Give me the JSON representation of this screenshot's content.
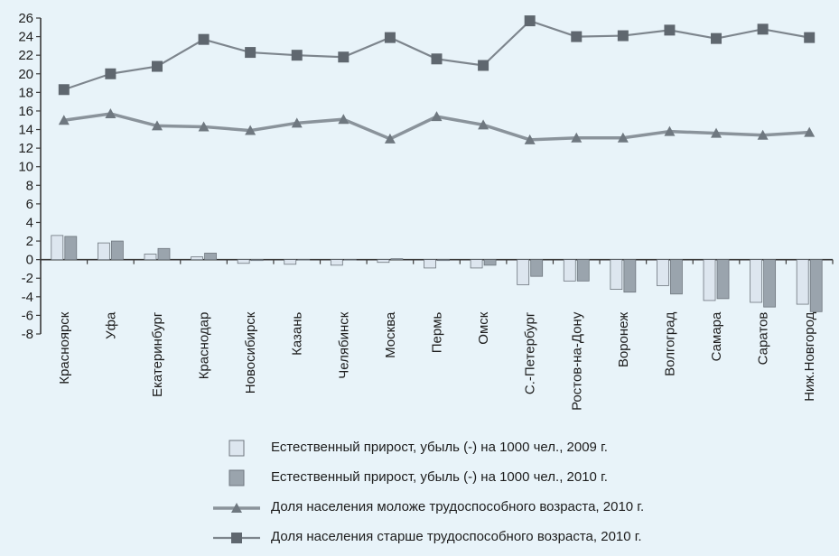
{
  "chart_data": {
    "type": "bar+line",
    "categories": [
      "Красноярск",
      "Уфа",
      "Екатеринбург",
      "Краснодар",
      "Новосибирск",
      "Казань",
      "Челябинск",
      "Москва",
      "Пермь",
      "Омск",
      "С.-Петербург",
      "Ростов-на-Дону",
      "Воронеж",
      "Волгоград",
      "Самара",
      "Саратов",
      "Ниж.Новгород"
    ],
    "ylim": [
      -8,
      26
    ],
    "yticks": [
      26,
      24,
      22,
      20,
      18,
      16,
      14,
      12,
      10,
      8,
      6,
      4,
      2,
      0,
      -2,
      -4,
      -6,
      -8
    ],
    "bar_series": [
      {
        "name": "Естественный прирост, убыль (-) на 1000 чел., 2009 г.",
        "color": "#dde6ef",
        "values": [
          2.6,
          1.8,
          0.6,
          0.3,
          -0.4,
          -0.5,
          -0.6,
          -0.3,
          -0.9,
          -0.9,
          -2.7,
          -2.3,
          -3.2,
          -2.8,
          -4.4,
          -4.6,
          -4.8
        ]
      },
      {
        "name": "Естественный прирост, убыль (-) на 1000 чел., 2010 г.",
        "color": "#9aa4ad",
        "values": [
          2.5,
          2.0,
          1.2,
          0.7,
          -0.1,
          0.0,
          0.0,
          0.1,
          -0.1,
          -0.6,
          -1.8,
          -2.3,
          -3.5,
          -3.7,
          -4.2,
          -5.1,
          -5.6
        ]
      }
    ],
    "line_series": [
      {
        "name": "Доля населения моложе трудоспособного возраста, 2010 г.",
        "marker": "triangle",
        "color": "#8a939b",
        "values": [
          15.0,
          15.7,
          14.4,
          14.3,
          13.9,
          14.7,
          15.1,
          13.0,
          15.4,
          14.5,
          12.9,
          13.1,
          13.1,
          13.8,
          13.6,
          13.4,
          13.7
        ]
      },
      {
        "name": "Доля населения старше трудоспособного возраста, 2010 г.",
        "marker": "square",
        "color": "#7d858d",
        "values": [
          18.3,
          20.0,
          20.8,
          23.7,
          22.3,
          22.0,
          21.8,
          23.9,
          21.6,
          20.9,
          25.7,
          24.0,
          24.1,
          24.7,
          23.8,
          24.8,
          23.9
        ]
      }
    ],
    "grid": false,
    "legend_position": "bottom"
  }
}
